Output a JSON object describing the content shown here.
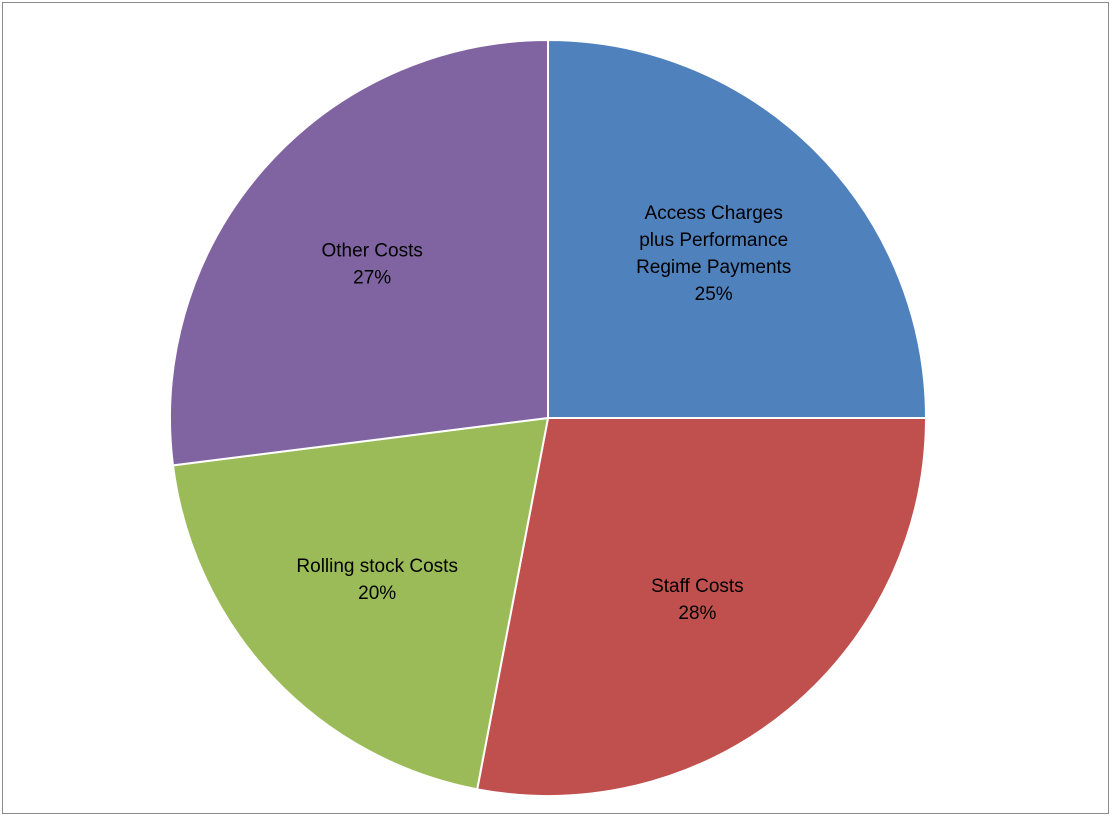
{
  "chart_data": {
    "type": "pie",
    "title": "",
    "slices": [
      {
        "label_lines": [
          "Access Charges",
          "plus Performance",
          "Regime Payments"
        ],
        "value": 25,
        "pct_label": "25%",
        "color": "#4F81BD"
      },
      {
        "label_lines": [
          "Staff Costs"
        ],
        "value": 28,
        "pct_label": "28%",
        "color": "#C0504D"
      },
      {
        "label_lines": [
          "Rolling stock Costs"
        ],
        "value": 20,
        "pct_label": "20%",
        "color": "#9BBB59"
      },
      {
        "label_lines": [
          "Other Costs"
        ],
        "value": 27,
        "pct_label": "27%",
        "color": "#8064A2"
      }
    ],
    "start": "12 o'clock",
    "direction": "clockwise",
    "legend": "none",
    "data_labels": "inside"
  }
}
